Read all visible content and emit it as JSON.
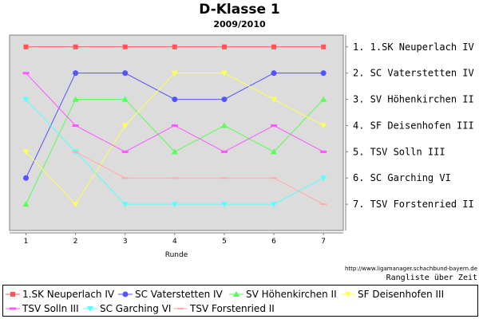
{
  "chart_data": {
    "type": "line",
    "title": "D-Klasse 1",
    "subtitle": "2009/2010",
    "xlabel": "Runde",
    "x": [
      1,
      2,
      3,
      4,
      5,
      6,
      7
    ],
    "ylim": [
      1,
      7
    ],
    "y_inverted": true,
    "grid": false,
    "background": "#dcdcdc",
    "right_axis_labels": [
      "1. 1.SK Neuperlach IV",
      "2. SC Vaterstetten IV",
      "3. SV Höhenkirchen II",
      "4. SF Deisenhofen III",
      "5. TSV Solln III",
      "6. SC Garching VI",
      "7. TSV Forstenried II"
    ],
    "series": [
      {
        "name": "1.SK Neuperlach IV",
        "color": "#ff5555",
        "marker": "square",
        "values": [
          1,
          1,
          1,
          1,
          1,
          1,
          1
        ]
      },
      {
        "name": "SC Vaterstetten IV",
        "color": "#5555ff",
        "marker": "circle",
        "values": [
          6,
          2,
          2,
          3,
          3,
          2,
          2
        ]
      },
      {
        "name": "SV Höhenkirchen II",
        "color": "#55ff55",
        "marker": "triangle-up",
        "values": [
          7,
          3,
          3,
          5,
          4,
          5,
          3
        ]
      },
      {
        "name": "SF Deisenhofen III",
        "color": "#ffff55",
        "marker": "triangle-down",
        "values": [
          5,
          7,
          4,
          2,
          2,
          3,
          4
        ]
      },
      {
        "name": "TSV Solln III",
        "color": "#ff55ff",
        "marker": "bar",
        "values": [
          2,
          4,
          5,
          4,
          5,
          4,
          5
        ]
      },
      {
        "name": "SC Garching VI",
        "color": "#55ffff",
        "marker": "triangle-down",
        "values": [
          3,
          5,
          7,
          7,
          7,
          7,
          6
        ]
      },
      {
        "name": "TSV Forstenried II",
        "color": "#ffaaaa",
        "marker": "dash",
        "values": [
          null,
          5,
          6,
          6,
          6,
          6,
          7
        ]
      }
    ]
  },
  "source_url": "http://www.ligamanager.schachbund-bayern.de",
  "caption_note": "Rangliste über Zeit"
}
